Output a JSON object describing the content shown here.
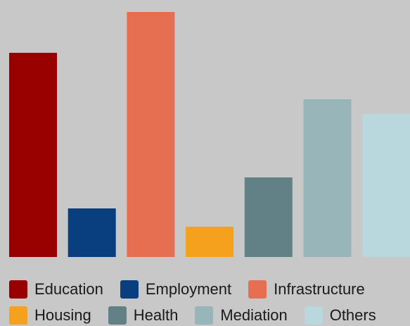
{
  "chart_data": {
    "type": "bar",
    "categories": [
      "Education",
      "Employment",
      "Infrastructure",
      "Housing",
      "Health",
      "Mediation",
      "Others"
    ],
    "values": [
      290,
      69,
      348,
      43,
      113,
      224,
      203
    ],
    "colors": [
      "#990000",
      "#0a3f7f",
      "#e76f51",
      "#f6a11e",
      "#628186",
      "#98b6ba",
      "#b9d8dd"
    ],
    "ylim": [
      0,
      348
    ],
    "grid": false,
    "legend": "bottom",
    "title": "",
    "xlabel": "",
    "ylabel": ""
  },
  "legend_rows": [
    [
      {
        "label": "Education",
        "color": "#990000"
      },
      {
        "label": "Employment",
        "color": "#0a3f7f"
      },
      {
        "label": "Infrastructure",
        "color": "#e76f51"
      }
    ],
    [
      {
        "label": "Housing",
        "color": "#f6a11e"
      },
      {
        "label": "Health",
        "color": "#628186"
      },
      {
        "label": "Mediation",
        "color": "#98b6ba"
      },
      {
        "label": "Others",
        "color": "#b9d8dd"
      }
    ]
  ]
}
